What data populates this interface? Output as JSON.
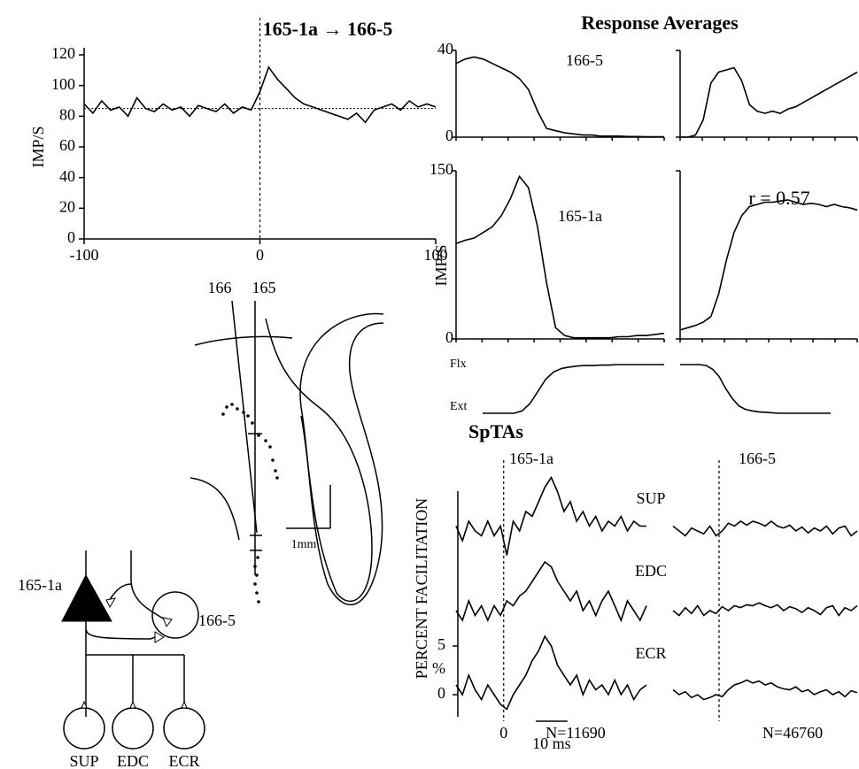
{
  "chart_data": [
    {
      "type": "line",
      "title": "165-1a → 166-5",
      "ylabel": "IMP/S",
      "color": "#000000",
      "x": [
        -100,
        -95,
        -90,
        -85,
        -80,
        -75,
        -70,
        -65,
        -60,
        -55,
        -50,
        -45,
        -40,
        -35,
        -30,
        -25,
        -20,
        -15,
        -10,
        -5,
        0,
        5,
        10,
        15,
        20,
        25,
        30,
        35,
        40,
        45,
        50,
        55,
        60,
        65,
        70,
        75,
        80,
        85,
        90,
        95,
        100
      ],
      "values": [
        88,
        82,
        90,
        84,
        86,
        80,
        92,
        85,
        83,
        88,
        84,
        86,
        80,
        87,
        85,
        83,
        88,
        82,
        86,
        84,
        96,
        112,
        104,
        98,
        92,
        88,
        86,
        84,
        82,
        80,
        78,
        82,
        76,
        84,
        86,
        88,
        84,
        90,
        86,
        88,
        86
      ],
      "xlim": [
        -100,
        100
      ],
      "ylim": [
        0,
        120
      ],
      "xticks": [
        -100,
        0,
        100
      ],
      "yticks": [
        0,
        20,
        40,
        60,
        80,
        100,
        120
      ],
      "baseline": 85
    },
    {
      "type": "response",
      "title": "Response Averages",
      "ylabel": "IMP/S",
      "annotation": "r = 0.57",
      "color": "#000000",
      "rows": [
        {
          "label": "166-5",
          "ylim": [
            0,
            40
          ],
          "yticks": [
            0,
            40
          ],
          "series": [
            {
              "values": [
                34,
                36,
                37,
                36,
                34,
                32,
                30,
                27,
                22,
                12,
                4,
                3,
                2,
                1.5,
                1,
                1,
                0.5,
                0.5,
                0.5,
                0.3,
                0.3,
                0.2,
                0.2,
                0.2
              ]
            },
            {
              "values": [
                0,
                0,
                1,
                8,
                25,
                30,
                31,
                32,
                26,
                15,
                12,
                11,
                12,
                11,
                13,
                14,
                16,
                18,
                20,
                22,
                24,
                26,
                28,
                30
              ]
            }
          ]
        },
        {
          "label": "165-1a",
          "ylim": [
            0,
            150
          ],
          "yticks": [
            0,
            150
          ],
          "series": [
            {
              "values": [
                85,
                88,
                90,
                95,
                100,
                110,
                125,
                145,
                135,
                100,
                50,
                10,
                3,
                1,
                1,
                1,
                1,
                1,
                2,
                2,
                3,
                3,
                4,
                5
              ]
            },
            {
              "values": [
                8,
                10,
                12,
                15,
                20,
                40,
                70,
                95,
                110,
                118,
                120,
                122,
                122,
                123,
                124,
                122,
                120,
                121,
                120,
                118,
                120,
                118,
                117,
                115
              ]
            }
          ]
        }
      ],
      "position": {
        "labels": [
          "Flx",
          "Ext"
        ],
        "ylim": [
          0,
          1
        ],
        "series": [
          {
            "values": [
              0,
              0,
              0,
              0,
              0,
              0.05,
              0.2,
              0.45,
              0.7,
              0.85,
              0.92,
              0.95,
              0.97,
              0.98,
              0.98,
              0.99,
              0.99,
              1,
              1,
              1,
              1,
              1,
              1,
              1
            ]
          },
          {
            "values": [
              1,
              1,
              1,
              1,
              0.98,
              0.9,
              0.75,
              0.5,
              0.3,
              0.15,
              0.08,
              0.05,
              0.03,
              0.02,
              0.01,
              0,
              0,
              0,
              0,
              0,
              0,
              0,
              0,
              0
            ]
          }
        ]
      }
    },
    {
      "type": "spta",
      "title": "SpTAs",
      "ylabel": "PERCENT FACILITATION",
      "yunit": "%",
      "color": "#000000",
      "rows": [
        "SUP",
        "EDC",
        "ECR"
      ],
      "x": [
        -15,
        -13,
        -11,
        -9,
        -7,
        -5,
        -3,
        -1,
        1,
        3,
        5,
        7,
        9,
        11,
        13,
        15,
        17,
        19,
        21,
        23,
        25,
        27,
        29,
        31,
        33,
        35,
        37,
        39,
        41,
        43,
        45
      ],
      "xlim": [
        -15,
        45
      ],
      "xticks": [
        0
      ],
      "yticks": [
        0,
        5
      ],
      "scalebar": {
        "value": 10,
        "label": "10 ms"
      },
      "columns": [
        {
          "label": "165-1a",
          "count": "N=11690",
          "series": [
            {
              "values": [
                0.5,
                -1,
                1,
                0,
                -0.5,
                1,
                -0.5,
                0.5,
                -2.5,
                1,
                0,
                2,
                1.5,
                3,
                4.5,
                5.5,
                4,
                2,
                3,
                1,
                2,
                0.5,
                1.5,
                0,
                1,
                0.5,
                1.5,
                0,
                1,
                0.5,
                0.5
              ]
            },
            {
              "values": [
                0,
                -1,
                1,
                -0.5,
                0.5,
                -1,
                0.5,
                -0.5,
                1,
                0.5,
                1.5,
                2,
                3,
                4,
                5,
                4.5,
                3,
                2,
                1,
                2,
                0,
                1,
                -0.5,
                1,
                2,
                0.5,
                -1,
                1,
                0,
                -1,
                0.5
              ]
            },
            {
              "values": [
                1,
                0,
                2,
                0.5,
                -0.5,
                1,
                0,
                -1,
                -1.5,
                0,
                1,
                2,
                3.5,
                4.5,
                6,
                5,
                3,
                2,
                1,
                2,
                0,
                1.5,
                0.5,
                1,
                0,
                1.5,
                0,
                1,
                -0.5,
                0.5,
                1
              ]
            }
          ]
        },
        {
          "label": "166-5",
          "count": "N=46760",
          "series": [
            {
              "values": [
                0.5,
                0,
                -0.5,
                0.3,
                0,
                -0.3,
                0.5,
                -0.5,
                0,
                0.8,
                0.5,
                1,
                0.6,
                1,
                0.8,
                0.5,
                1,
                0.5,
                0.3,
                0.6,
                0,
                0.4,
                -0.2,
                0.3,
                0,
                0.5,
                -0.3,
                0.3,
                0.5,
                -0.5,
                0
              ]
            },
            {
              "values": [
                0,
                -0.5,
                0.3,
                -0.3,
                0.5,
                -0.5,
                0,
                -0.3,
                0.4,
                0,
                0.5,
                0.3,
                0.6,
                0.5,
                0.8,
                0.5,
                0.3,
                0.6,
                0,
                0.4,
                0.2,
                -0.2,
                0.3,
                0,
                -0.4,
                0.3,
                0.5,
                -0.5,
                0.3,
                0,
                0.5
              ]
            },
            {
              "values": [
                0.5,
                0,
                0.3,
                -0.3,
                0,
                -0.5,
                -0.3,
                0,
                -0.2,
                0.5,
                1,
                1.2,
                1.5,
                1.2,
                1.4,
                1,
                1.2,
                0.8,
                0.6,
                0.5,
                0.8,
                0.3,
                0.5,
                0,
                0.3,
                0.5,
                0,
                0.3,
                -0.2,
                0.4,
                0.2
              ]
            }
          ]
        }
      ]
    }
  ],
  "diagram": {
    "electrodes": [
      "166",
      "165"
    ],
    "scale": "1mm",
    "cells": [
      "165-1a",
      "166-5"
    ],
    "muscles": [
      "SUP",
      "EDC",
      "ECR"
    ]
  }
}
